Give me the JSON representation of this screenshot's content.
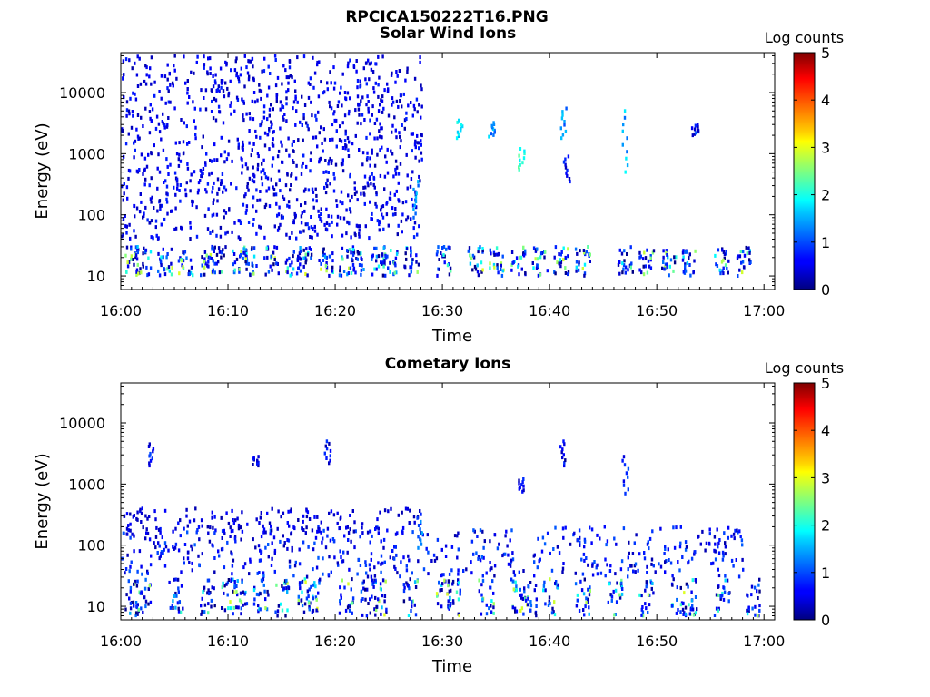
{
  "figure": {
    "title": "RPCICA150222T16.PNG"
  },
  "chart_data": [
    {
      "type": "heatmap",
      "title": "Solar Wind Ions",
      "xlabel": "Time",
      "ylabel": "Energy (eV)",
      "y_scale": "log",
      "ylim": [
        6,
        45000
      ],
      "xlim": [
        "16:00",
        "17:01"
      ],
      "x_ticks": [
        "16:00",
        "16:10",
        "16:20",
        "16:30",
        "16:40",
        "16:50",
        "17:00"
      ],
      "y_ticks": [
        "10",
        "100",
        "1000",
        "10000"
      ],
      "colorbar": {
        "label": "Log counts",
        "range": [
          0,
          5
        ],
        "ticks": [
          "0",
          "1",
          "2",
          "3",
          "4",
          "5"
        ],
        "colormap": "jet"
      },
      "grid": false,
      "features": {
        "random_noise_all_energies_until": "16:28",
        "low_energy_bursts_energy_range_eV": [
          10,
          30
        ],
        "low_energy_burst_times": [
          "16:01",
          "16:02",
          "16:04",
          "16:06",
          "16:08",
          "16:09",
          "16:11",
          "16:12",
          "16:14",
          "16:16",
          "16:17",
          "16:19",
          "16:21",
          "16:22",
          "16:24",
          "16:25",
          "16:27",
          "16:30",
          "16:33",
          "16:35",
          "16:37",
          "16:39",
          "16:41",
          "16:43",
          "16:47",
          "16:49",
          "16:51",
          "16:53",
          "16:56",
          "16:58"
        ],
        "high_energy_events": [
          {
            "time": "16:27.5",
            "energy_range_eV": [
              90,
              350
            ],
            "log_counts": 1.3
          },
          {
            "time": "16:31.5",
            "energy_range_eV": [
              1800,
              3500
            ],
            "log_counts": 1.7
          },
          {
            "time": "16:34.5",
            "energy_range_eV": [
              1900,
              3200
            ],
            "log_counts": 1.4
          },
          {
            "time": "16:37.3",
            "energy_range_eV": [
              550,
              1200
            ],
            "log_counts": 2.0
          },
          {
            "time": "16:41.2",
            "energy_range_eV": [
              1800,
              5500
            ],
            "log_counts": 1.3
          },
          {
            "time": "16:41.5",
            "energy_range_eV": [
              350,
              900
            ],
            "log_counts": 0.5
          },
          {
            "time": "16:47.0",
            "energy_range_eV": [
              500,
              5000
            ],
            "log_counts": 1.5
          },
          {
            "time": "16:53.5",
            "energy_range_eV": [
              2000,
              3000
            ],
            "log_counts": 0.7
          }
        ]
      }
    },
    {
      "type": "heatmap",
      "title": "Cometary Ions",
      "xlabel": "Time",
      "ylabel": "Energy (eV)",
      "y_scale": "log",
      "ylim": [
        6,
        45000
      ],
      "xlim": [
        "16:00",
        "17:01"
      ],
      "x_ticks": [
        "16:00",
        "16:10",
        "16:20",
        "16:30",
        "16:40",
        "16:50",
        "17:00"
      ],
      "y_ticks": [
        "10",
        "100",
        "1000",
        "10000"
      ],
      "colorbar": {
        "label": "Log counts",
        "range": [
          0,
          5
        ],
        "ticks": [
          "0",
          "1",
          "2",
          "3",
          "4",
          "5"
        ],
        "colormap": "jet"
      },
      "grid": false,
      "features": {
        "low_energy_bursts_energy_range_eV": [
          7,
          28
        ],
        "low_energy_burst_times": [
          "16:01",
          "16:02",
          "16:05",
          "16:08",
          "16:10",
          "16:11",
          "16:13",
          "16:15",
          "16:17",
          "16:18",
          "16:21",
          "16:23",
          "16:24",
          "16:27",
          "16:30",
          "16:31",
          "16:34",
          "16:37",
          "16:38",
          "16:40",
          "16:43",
          "16:46",
          "16:49",
          "16:52",
          "16:53",
          "16:56",
          "16:59"
        ],
        "mid_energy_streaks_energy_range_eV": [
          30,
          200
        ],
        "high_energy_events": [
          {
            "time": "16:02.7",
            "energy_range_eV": [
              2000,
              4500
            ],
            "log_counts": 0.6
          },
          {
            "time": "16:12.5",
            "energy_range_eV": [
              2000,
              2800
            ],
            "log_counts": 0.5
          },
          {
            "time": "16:19.2",
            "energy_range_eV": [
              2200,
              5000
            ],
            "log_counts": 0.6
          },
          {
            "time": "16:27.8",
            "energy_range_eV": [
              90,
              320
            ],
            "log_counts": 1.2
          },
          {
            "time": "16:37.2",
            "energy_range_eV": [
              750,
              1200
            ],
            "log_counts": 0.5
          },
          {
            "time": "16:41.2",
            "energy_range_eV": [
              2000,
              5000
            ],
            "log_counts": 0.5
          },
          {
            "time": "16:47.0",
            "energy_range_eV": [
              700,
              2800
            ],
            "log_counts": 0.8
          }
        ]
      }
    }
  ]
}
